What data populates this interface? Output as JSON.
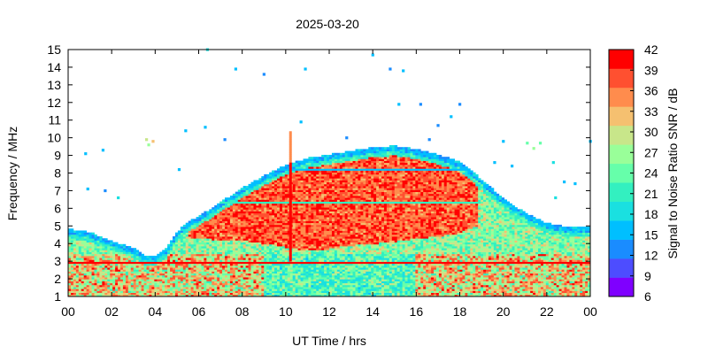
{
  "chart_data": {
    "type": "heatmap",
    "title": "2025-03-20",
    "xlabel": "UT Time / hrs",
    "ylabel": "Frequency / MHz",
    "colorbar_label": "Signal to Noise Ratio SNR / dB",
    "xlim": [
      0,
      24
    ],
    "ylim": [
      1,
      15
    ],
    "x_tick_labels": [
      "00",
      "02",
      "04",
      "06",
      "08",
      "10",
      "12",
      "14",
      "16",
      "18",
      "20",
      "22",
      "00"
    ],
    "y_tick_labels": [
      "1",
      "2",
      "3",
      "4",
      "5",
      "6",
      "7",
      "8",
      "9",
      "10",
      "11",
      "12",
      "13",
      "14",
      "15"
    ],
    "colorbar_ticks": [
      "6",
      "9",
      "12",
      "15",
      "18",
      "21",
      "24",
      "27",
      "30",
      "33",
      "36",
      "39",
      "42"
    ],
    "colorbar_range": [
      6,
      42
    ],
    "colorbar_colors": [
      "#7f00ff",
      "#4d4dff",
      "#1a8cff",
      "#00bfff",
      "#1ae0e0",
      "#33f0c0",
      "#66ffaa",
      "#99ff99",
      "#c8e68a",
      "#f5c070",
      "#ff8c4d",
      "#ff5030",
      "#ff0000"
    ],
    "envelope": {
      "hours": [
        0,
        1,
        2,
        3,
        3.5,
        4,
        4.5,
        5,
        5.5,
        6,
        7,
        8,
        9,
        10,
        11,
        12,
        13,
        14,
        15,
        16,
        17,
        18,
        19,
        20,
        21,
        22,
        23,
        24
      ],
      "upper_mhz": [
        4.8,
        4.6,
        4.1,
        3.7,
        3.3,
        3.2,
        3.7,
        4.6,
        5.2,
        5.5,
        6.3,
        7.1,
        7.8,
        8.4,
        8.8,
        9.0,
        9.2,
        9.4,
        9.5,
        9.3,
        9.0,
        8.6,
        7.6,
        6.5,
        5.7,
        5.1,
        4.9,
        4.9
      ],
      "lower_mhz": [
        1,
        1,
        1,
        1,
        1,
        1,
        1,
        1,
        1,
        1,
        1,
        1,
        1,
        1,
        1,
        1,
        1,
        1,
        1,
        1,
        1,
        1,
        1,
        1,
        1,
        1,
        1,
        1
      ]
    },
    "core_high_snr": {
      "hours": [
        5.5,
        6,
        7,
        8,
        9,
        10,
        11,
        12,
        13,
        14,
        15,
        16,
        17,
        18,
        18.8
      ],
      "upper_mhz": [
        5.2,
        5.7,
        6.2,
        6.8,
        7.5,
        8.1,
        8.3,
        8.5,
        8.7,
        8.9,
        9.0,
        9.1,
        8.9,
        8.4,
        7.6
      ],
      "lower_mhz": [
        4.3,
        4.3,
        4.2,
        4.2,
        4.0,
        3.8,
        3.6,
        3.7,
        3.9,
        4.0,
        4.1,
        4.3,
        4.4,
        4.6,
        5.0
      ]
    },
    "scattered_points": [
      {
        "t": 3.6,
        "f": 9.9,
        "snr": 30
      },
      {
        "t": 3.7,
        "f": 9.6,
        "snr": 27
      },
      {
        "t": 3.9,
        "f": 9.8,
        "snr": 33
      },
      {
        "t": 0.8,
        "f": 9.1,
        "snr": 15
      },
      {
        "t": 1.6,
        "f": 9.3,
        "snr": 15
      },
      {
        "t": 0.9,
        "f": 7.1,
        "snr": 15
      },
      {
        "t": 1.7,
        "f": 7.0,
        "snr": 12
      },
      {
        "t": 2.3,
        "f": 6.6,
        "snr": 18
      },
      {
        "t": 5.4,
        "f": 10.4,
        "snr": 15
      },
      {
        "t": 6.3,
        "f": 10.6,
        "snr": 15
      },
      {
        "t": 7.2,
        "f": 9.9,
        "snr": 12
      },
      {
        "t": 7.7,
        "f": 13.9,
        "snr": 15
      },
      {
        "t": 9.0,
        "f": 13.6,
        "snr": 12
      },
      {
        "t": 10.9,
        "f": 13.9,
        "snr": 15
      },
      {
        "t": 6.4,
        "f": 15.0,
        "snr": 18
      },
      {
        "t": 14.0,
        "f": 14.7,
        "snr": 15
      },
      {
        "t": 14.8,
        "f": 13.9,
        "snr": 12
      },
      {
        "t": 15.4,
        "f": 13.8,
        "snr": 15
      },
      {
        "t": 15.2,
        "f": 11.9,
        "snr": 15
      },
      {
        "t": 16.2,
        "f": 11.9,
        "snr": 12
      },
      {
        "t": 17.6,
        "f": 11.2,
        "snr": 15
      },
      {
        "t": 18.0,
        "f": 11.9,
        "snr": 12
      },
      {
        "t": 10.7,
        "f": 10.9,
        "snr": 15
      },
      {
        "t": 12.8,
        "f": 10.0,
        "snr": 12
      },
      {
        "t": 17.0,
        "f": 10.7,
        "snr": 12
      },
      {
        "t": 16.6,
        "f": 9.9,
        "snr": 12
      },
      {
        "t": 20.0,
        "f": 9.8,
        "snr": 15
      },
      {
        "t": 21.1,
        "f": 9.7,
        "snr": 24
      },
      {
        "t": 21.4,
        "f": 9.4,
        "snr": 27
      },
      {
        "t": 21.7,
        "f": 9.7,
        "snr": 24
      },
      {
        "t": 22.3,
        "f": 8.6,
        "snr": 18
      },
      {
        "t": 22.8,
        "f": 7.5,
        "snr": 15
      },
      {
        "t": 23.3,
        "f": 7.4,
        "snr": 15
      },
      {
        "t": 24.0,
        "f": 9.8,
        "snr": 15
      },
      {
        "t": 19.6,
        "f": 8.6,
        "snr": 15
      },
      {
        "t": 20.4,
        "f": 8.4,
        "snr": 15
      },
      {
        "t": 22.4,
        "f": 6.6,
        "snr": 18
      },
      {
        "t": 5.1,
        "f": 8.2,
        "snr": 15
      }
    ],
    "spike": {
      "t": 10.2,
      "f_min": 3.0,
      "f_max": 10.3
    }
  }
}
